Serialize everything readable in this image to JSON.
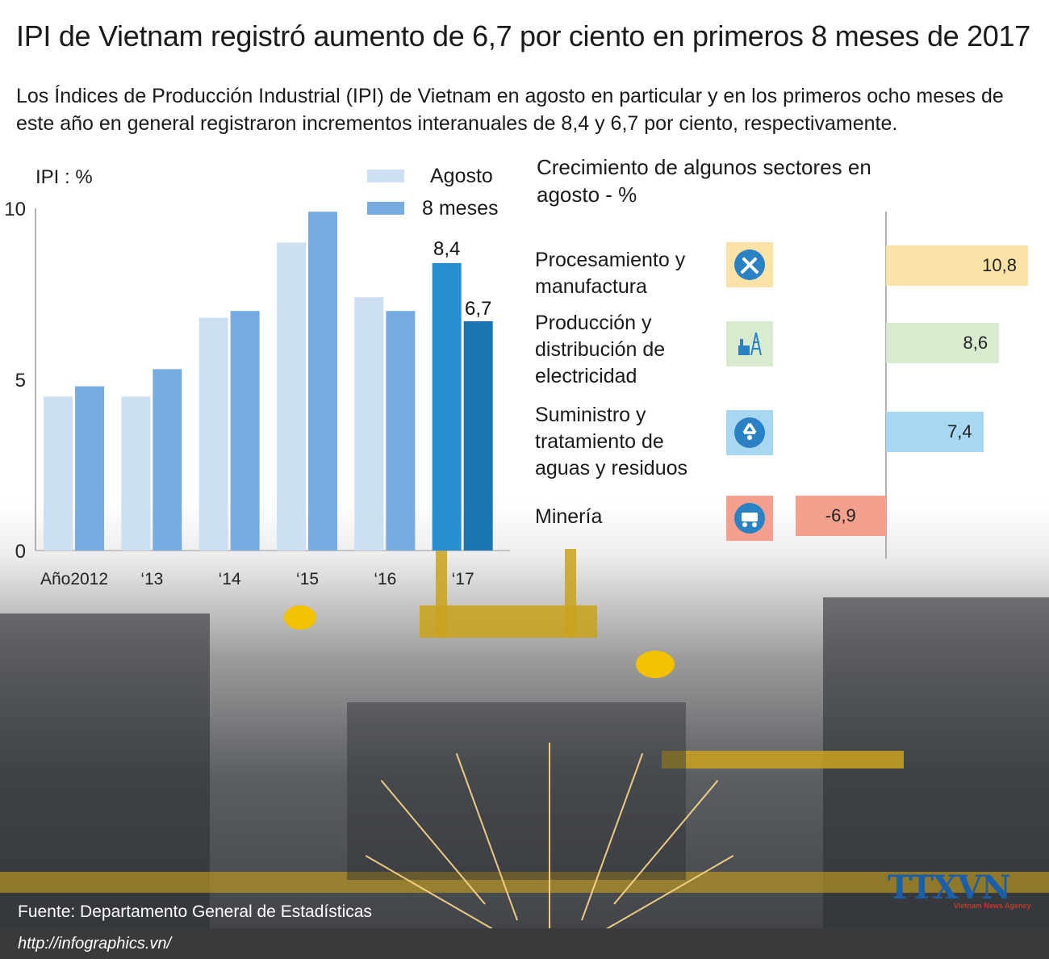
{
  "title": "IPI de Vietnam registró aumento de 6,7 por ciento en primeros 8 meses de 2017",
  "subtitle": "Los Índices de Producción Industrial (IPI) de Vietnam en agosto en particular y en los primeros ocho meses de este año en general registraron incrementos interanuales de 8,4 y 6,7 por ciento, respectivamente.",
  "chart_data": [
    {
      "type": "bar",
      "ylabel": "IPI : %",
      "ylim": [
        0,
        10
      ],
      "yticks": [
        "0",
        "5",
        "10"
      ],
      "categories": [
        "Año2012",
        "‘13",
        "‘14",
        "‘15",
        "‘16",
        "‘17"
      ],
      "series": [
        {
          "name": "Agosto",
          "values": [
            4.5,
            4.5,
            6.8,
            9.0,
            7.4,
            8.4
          ],
          "color": "#cddff2",
          "highlight_color": "#2a8fd0"
        },
        {
          "name": "8 meses",
          "values": [
            4.8,
            5.3,
            7.0,
            9.9,
            7.0,
            6.7
          ],
          "color": "#78ace0",
          "highlight_color": "#1d74b3"
        }
      ],
      "data_labels": {
        "8meses_2017": "6,7",
        "agosto_2017": "8,4"
      },
      "legend": "top-right"
    },
    {
      "type": "bar",
      "orientation": "horizontal",
      "title": "Crecimiento de algunos sectores en agosto - %",
      "categories": [
        "Procesamiento y manufactura",
        "Producción y distribución de electricidad",
        "Suministro y tratamiento de aguas y residuos",
        "Minería"
      ],
      "values": [
        10.8,
        8.6,
        7.4,
        -6.9
      ],
      "value_labels": [
        "10,8",
        "8,6",
        "7,4",
        "-6,9"
      ],
      "colors": [
        "#fbe3a8",
        "#d8ebcf",
        "#a8d7f2",
        "#f4a08e"
      ]
    }
  ],
  "sectors": [
    {
      "label_lines": [
        "Procesamiento y",
        "manufactura"
      ],
      "icon": "tools-icon",
      "icon_bg": "#fbe3a8"
    },
    {
      "label_lines": [
        "Producción y",
        "distribución de",
        "electricidad"
      ],
      "icon": "power-plant-icon",
      "icon_bg": "#d8ebcf"
    },
    {
      "label_lines": [
        "Suministro y",
        "tratamiento de",
        "aguas y residuos"
      ],
      "icon": "recycle-icon",
      "icon_bg": "#a8d7f2"
    },
    {
      "label_lines": [
        "Minería"
      ],
      "icon": "mine-cart-icon",
      "icon_bg": "#f4a08e"
    }
  ],
  "source": "Fuente: Departamento General de Estadísticas",
  "url": "http://infographics.vn/",
  "logo": "TTXVN",
  "logo_sub": "Vietnam News Agency"
}
